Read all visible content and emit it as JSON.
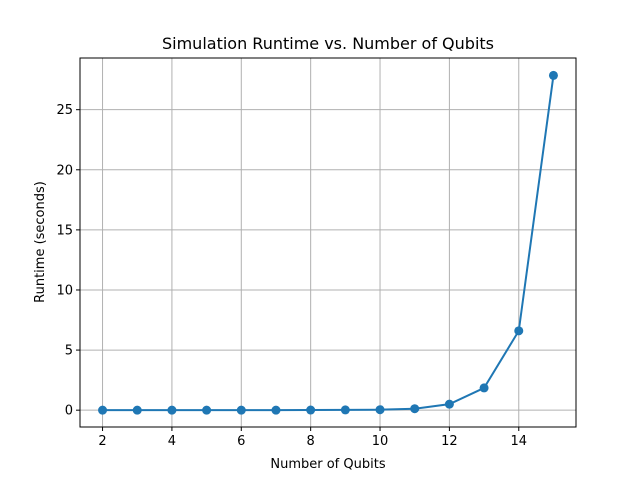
{
  "chart_data": {
    "type": "line",
    "title": "Simulation Runtime vs. Number of Qubits",
    "xlabel": "Number of Qubits",
    "ylabel": "Runtime (seconds)",
    "x": [
      2,
      3,
      4,
      5,
      6,
      7,
      8,
      9,
      10,
      11,
      12,
      13,
      14,
      15
    ],
    "series": [
      {
        "values": [
          0.0,
          0.0,
          0.0,
          0.0,
          0.0,
          0.0,
          0.01,
          0.02,
          0.04,
          0.12,
          0.5,
          1.85,
          6.6,
          27.85
        ],
        "color": "#1f77b4",
        "marker": "circle"
      }
    ],
    "xlim": [
      1.35,
      15.65
    ],
    "ylim": [
      -1.4,
      29.3
    ],
    "xticks": [
      2,
      4,
      6,
      8,
      10,
      12,
      14
    ],
    "yticks": [
      0,
      5,
      10,
      15,
      20,
      25
    ],
    "grid": true
  }
}
